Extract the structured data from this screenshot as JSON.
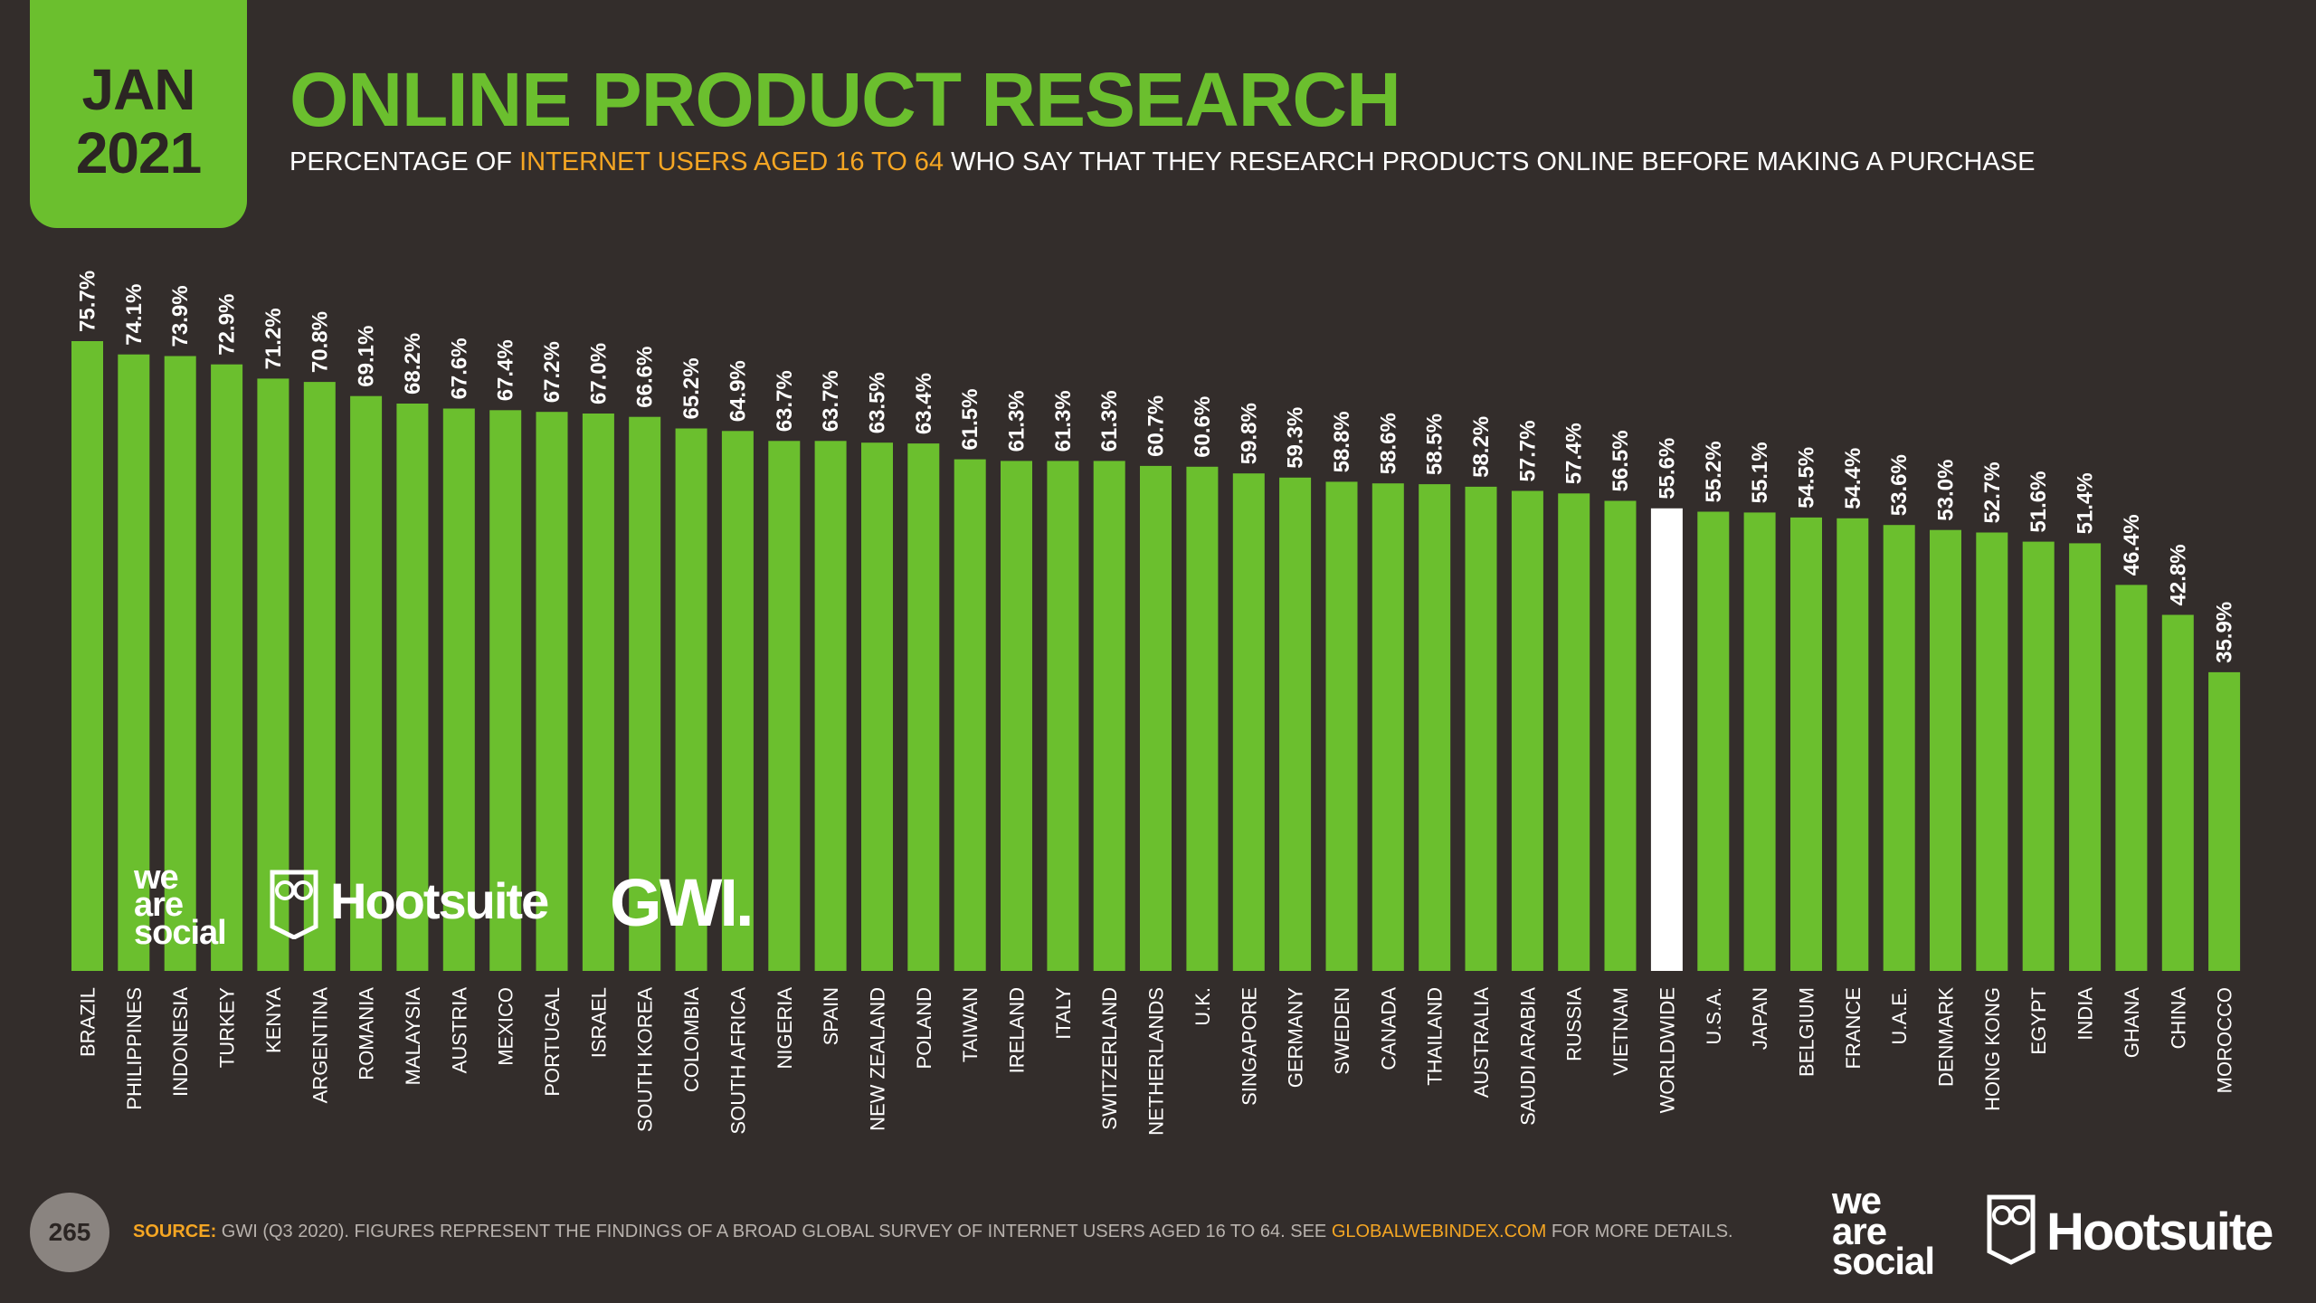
{
  "badge": {
    "month": "JAN",
    "year": "2021"
  },
  "header": {
    "title": "ONLINE PRODUCT RESEARCH",
    "subtitle_pre": "PERCENTAGE OF ",
    "subtitle_highlight": "INTERNET USERS AGED 16 TO 64",
    "subtitle_post": " WHO SAY THAT THEY RESEARCH PRODUCTS ONLINE BEFORE MAKING A PURCHASE"
  },
  "colors": {
    "bar": "#6bbf2e",
    "highlight_bar": "#ffffff",
    "label": "#ffffff",
    "accent": "#f5a623",
    "background": "#332d2b"
  },
  "chart_data": {
    "type": "bar",
    "title": "ONLINE PRODUCT RESEARCH",
    "xlabel": "",
    "ylabel": "",
    "ylim": [
      0,
      80
    ],
    "highlight": "WORLDWIDE",
    "categories": [
      "BRAZIL",
      "PHILIPPINES",
      "INDONESIA",
      "TURKEY",
      "KENYA",
      "ARGENTINA",
      "ROMANIA",
      "MALAYSIA",
      "AUSTRIA",
      "MEXICO",
      "PORTUGAL",
      "ISRAEL",
      "SOUTH KOREA",
      "COLOMBIA",
      "SOUTH AFRICA",
      "NIGERIA",
      "SPAIN",
      "NEW ZEALAND",
      "POLAND",
      "TAIWAN",
      "IRELAND",
      "ITALY",
      "SWITZERLAND",
      "NETHERLANDS",
      "U.K.",
      "SINGAPORE",
      "GERMANY",
      "SWEDEN",
      "CANADA",
      "THAILAND",
      "AUSTRALIA",
      "SAUDI ARABIA",
      "RUSSIA",
      "VIETNAM",
      "WORLDWIDE",
      "U.S.A.",
      "JAPAN",
      "BELGIUM",
      "FRANCE",
      "U.A.E.",
      "DENMARK",
      "HONG KONG",
      "EGYPT",
      "INDIA",
      "GHANA",
      "CHINA",
      "MOROCCO"
    ],
    "values": [
      75.7,
      74.1,
      73.9,
      72.9,
      71.2,
      70.8,
      69.1,
      68.2,
      67.6,
      67.4,
      67.2,
      67.0,
      66.6,
      65.2,
      64.9,
      63.7,
      63.7,
      63.5,
      63.4,
      61.5,
      61.3,
      61.3,
      61.3,
      60.7,
      60.6,
      59.8,
      59.3,
      58.8,
      58.6,
      58.5,
      58.2,
      57.7,
      57.4,
      56.5,
      55.6,
      55.2,
      55.1,
      54.5,
      54.4,
      53.6,
      53.0,
      52.7,
      51.6,
      51.4,
      46.4,
      42.8,
      35.9
    ],
    "data_labels": [
      "75.7%",
      "74.1%",
      "73.9%",
      "72.9%",
      "71.2%",
      "70.8%",
      "69.1%",
      "68.2%",
      "67.6%",
      "67.4%",
      "67.2%",
      "67.0%",
      "66.6%",
      "65.2%",
      "64.9%",
      "63.7%",
      "63.7%",
      "63.5%",
      "63.4%",
      "61.5%",
      "61.3%",
      "61.3%",
      "61.3%",
      "60.7%",
      "60.6%",
      "59.8%",
      "59.3%",
      "58.8%",
      "58.6%",
      "58.5%",
      "58.2%",
      "57.7%",
      "57.4%",
      "56.5%",
      "55.6%",
      "55.2%",
      "55.1%",
      "54.5%",
      "54.4%",
      "53.6%",
      "53.0%",
      "52.7%",
      "51.6%",
      "51.4%",
      "46.4%",
      "42.8%",
      "35.9%"
    ]
  },
  "logos": {
    "we": "we",
    "are": "are",
    "social": "social",
    "hootsuite": "Hootsuite",
    "gwi": "GWI."
  },
  "footer": {
    "page_number": "265",
    "source_label": "SOURCE:",
    "source_text": " GWI (Q3 2020). FIGURES REPRESENT THE FINDINGS OF A BROAD GLOBAL SURVEY OF INTERNET USERS AGED 16 TO 64. SEE ",
    "source_link": "GLOBALWEBINDEX.COM",
    "source_tail": " FOR MORE DETAILS."
  }
}
